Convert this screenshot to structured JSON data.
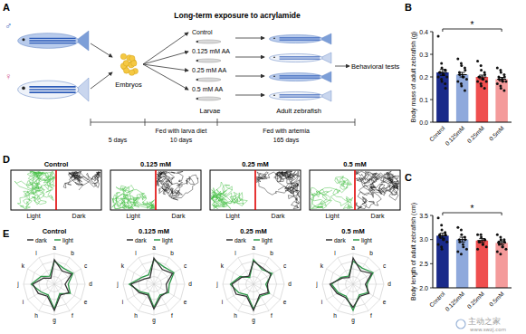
{
  "figure": {
    "panel_labels": [
      "A",
      "B",
      "C",
      "D",
      "E"
    ],
    "watermark": [
      "主动之家",
      "www.swzj.com"
    ]
  },
  "diagram": {
    "title": "Long-term exposure to acrylamide",
    "parents": [
      "♂",
      "♀"
    ],
    "stages": [
      "Embryos",
      "Larvae",
      "Adult zebrafish",
      "Behavioral tests"
    ],
    "groups": [
      "Control",
      "0.125 mM AA",
      "0.25 mM AA",
      "0.5 mM AA"
    ],
    "timeline": {
      "durations": [
        "5 days",
        "10 days",
        "165 days"
      ],
      "feeding": [
        "Fed with larva diet",
        "Fed with artemia"
      ]
    }
  },
  "trajectories": {
    "groups": [
      "Control",
      "0.125 mM",
      "0.25 mM",
      "0.5 mM"
    ],
    "zones": [
      "Light",
      "Dark"
    ]
  },
  "chart_data": [
    {
      "type": "bar",
      "y_label": "Body mass of adult zebrafish (g)",
      "categories": [
        "Control",
        "0.125mM",
        "0.25mM",
        "0.5mM"
      ],
      "values": [
        0.22,
        0.21,
        0.2,
        0.19
      ],
      "errors": [
        0.013,
        0.01,
        0.008,
        0.008
      ],
      "points": [
        [
          0.38,
          0.26,
          0.24,
          0.23,
          0.23,
          0.22,
          0.22,
          0.21,
          0.21,
          0.2,
          0.2,
          0.19,
          0.18,
          0.17,
          0.15
        ],
        [
          0.28,
          0.26,
          0.25,
          0.24,
          0.23,
          0.22,
          0.21,
          0.2,
          0.2,
          0.19,
          0.18,
          0.17,
          0.16,
          0.14
        ],
        [
          0.27,
          0.25,
          0.23,
          0.22,
          0.21,
          0.2,
          0.2,
          0.19,
          0.19,
          0.18,
          0.18,
          0.17,
          0.16,
          0.15
        ],
        [
          0.24,
          0.23,
          0.22,
          0.21,
          0.2,
          0.2,
          0.19,
          0.19,
          0.18,
          0.18,
          0.17,
          0.16,
          0.15,
          0.14
        ]
      ],
      "colors": [
        "#1a2a8a",
        "#8fa9dc",
        "#ef4f4f",
        "#f49b9b"
      ],
      "ylim": [
        0,
        0.4
      ],
      "yticks": [
        {
          "value": 0,
          "label": "0.0"
        },
        0.1,
        0.2,
        0.3,
        0.4
      ],
      "annotations": [
        {
          "text": "*",
          "between": [
            "Control",
            "0.5mM"
          ]
        }
      ]
    },
    {
      "type": "bar",
      "y_label": "Body length of adult zebrafish (cm)",
      "categories": [
        "Control",
        "0.125mM",
        "0.25mM",
        "0.5mM"
      ],
      "values": [
        3.08,
        3.0,
        2.98,
        2.93
      ],
      "errors": [
        0.05,
        0.05,
        0.04,
        0.04
      ],
      "points": [
        [
          3.45,
          3.3,
          3.2,
          3.15,
          3.1,
          3.1,
          3.05,
          3.0,
          3.0,
          2.95,
          2.9,
          2.85,
          2.8
        ],
        [
          3.25,
          3.2,
          3.1,
          3.05,
          3.0,
          3.0,
          2.95,
          2.9,
          2.85,
          2.8,
          2.75,
          2.7
        ],
        [
          3.1,
          3.1,
          3.05,
          3.0,
          3.0,
          2.95,
          2.95,
          2.9,
          2.9,
          2.85,
          2.8
        ],
        [
          3.1,
          3.05,
          3.0,
          3.0,
          2.95,
          2.95,
          2.9,
          2.85,
          2.85,
          2.8,
          2.75,
          2.7
        ]
      ],
      "colors": [
        "#1a2a8a",
        "#8fa9dc",
        "#ef4f4f",
        "#f49b9b"
      ],
      "ylim": [
        2,
        3.5
      ],
      "yticks": [
        {
          "value": 2,
          "label": "2.0"
        },
        2.5,
        {
          "value": 3,
          "label": "3.0"
        },
        3.5
      ],
      "annotations": [
        {
          "text": "*",
          "between": [
            "Control",
            "0.5mM"
          ]
        }
      ]
    },
    {
      "type": "radar",
      "title": "Control",
      "categories": [
        "a",
        "b",
        "c",
        "d",
        "e",
        "f",
        "g",
        "h",
        "i",
        "j",
        "k",
        "l"
      ],
      "series": [
        {
          "name": "dark",
          "color": "#333333",
          "values": [
            3.2,
            2.0,
            2.6,
            1.4,
            2.2,
            1.6,
            3.4,
            1.8,
            2.4,
            2.8,
            1.6,
            0.9
          ]
        },
        {
          "name": "light",
          "color": "#2e9a4a",
          "values": [
            3.0,
            2.4,
            2.8,
            1.8,
            2.4,
            1.4,
            3.2,
            1.6,
            2.0,
            3.0,
            2.0,
            1.2
          ]
        }
      ],
      "ylim": [
        0,
        4
      ],
      "yticks": [
        1,
        2,
        3,
        4
      ],
      "grid": true,
      "legend": "top",
      "tick_labels": "x"
    },
    {
      "type": "radar",
      "title": "0.125 mM",
      "categories": [
        "a",
        "b",
        "c",
        "d",
        "e",
        "f",
        "g",
        "h",
        "i",
        "j",
        "k",
        "l"
      ],
      "series": [
        {
          "name": "dark",
          "color": "#333333",
          "values": [
            3.4,
            2.2,
            2.8,
            1.6,
            2.0,
            1.8,
            3.2,
            1.6,
            2.2,
            3.0,
            1.4,
            1.0
          ]
        },
        {
          "name": "light",
          "color": "#2e9a4a",
          "values": [
            3.2,
            2.6,
            3.0,
            2.0,
            2.2,
            1.6,
            3.0,
            1.4,
            2.0,
            3.2,
            1.8,
            1.4
          ]
        }
      ],
      "ylim": [
        0,
        4
      ],
      "yticks": [
        1,
        2,
        3,
        4
      ],
      "grid": true,
      "legend": "top",
      "tick_labels": "x"
    },
    {
      "type": "radar",
      "title": "0.25 mM",
      "categories": [
        "a",
        "b",
        "c",
        "d",
        "e",
        "f",
        "g",
        "h",
        "i",
        "j",
        "k",
        "l"
      ],
      "series": [
        {
          "name": "dark",
          "color": "#333333",
          "values": [
            3.0,
            2.4,
            2.6,
            1.8,
            2.2,
            1.6,
            3.4,
            1.8,
            2.6,
            2.8,
            1.8,
            1.2
          ]
        },
        {
          "name": "light",
          "color": "#2e9a4a",
          "values": [
            3.2,
            2.2,
            2.8,
            1.6,
            2.4,
            1.8,
            3.2,
            1.6,
            2.2,
            3.0,
            2.0,
            1.0
          ]
        }
      ],
      "ylim": [
        0,
        4
      ],
      "yticks": [
        1,
        2,
        3,
        4
      ],
      "grid": true,
      "legend": "top",
      "tick_labels": "x"
    },
    {
      "type": "radar",
      "title": "0.5 mM",
      "categories": [
        "a",
        "b",
        "c",
        "d",
        "e",
        "f",
        "g",
        "h",
        "i",
        "j",
        "k",
        "l"
      ],
      "series": [
        {
          "name": "dark",
          "color": "#333333",
          "values": [
            3.4,
            2.0,
            2.8,
            1.6,
            2.4,
            1.8,
            3.0,
            2.0,
            2.4,
            3.0,
            1.6,
            1.0
          ]
        },
        {
          "name": "light",
          "color": "#2e9a4a",
          "values": [
            3.0,
            2.4,
            3.0,
            1.8,
            2.2,
            1.6,
            3.4,
            1.8,
            2.2,
            2.8,
            1.8,
            1.2
          ]
        }
      ],
      "ylim": [
        0,
        4
      ],
      "yticks": [
        1,
        2,
        3,
        4
      ],
      "grid": true,
      "legend": "top",
      "tick_labels": "x"
    }
  ]
}
